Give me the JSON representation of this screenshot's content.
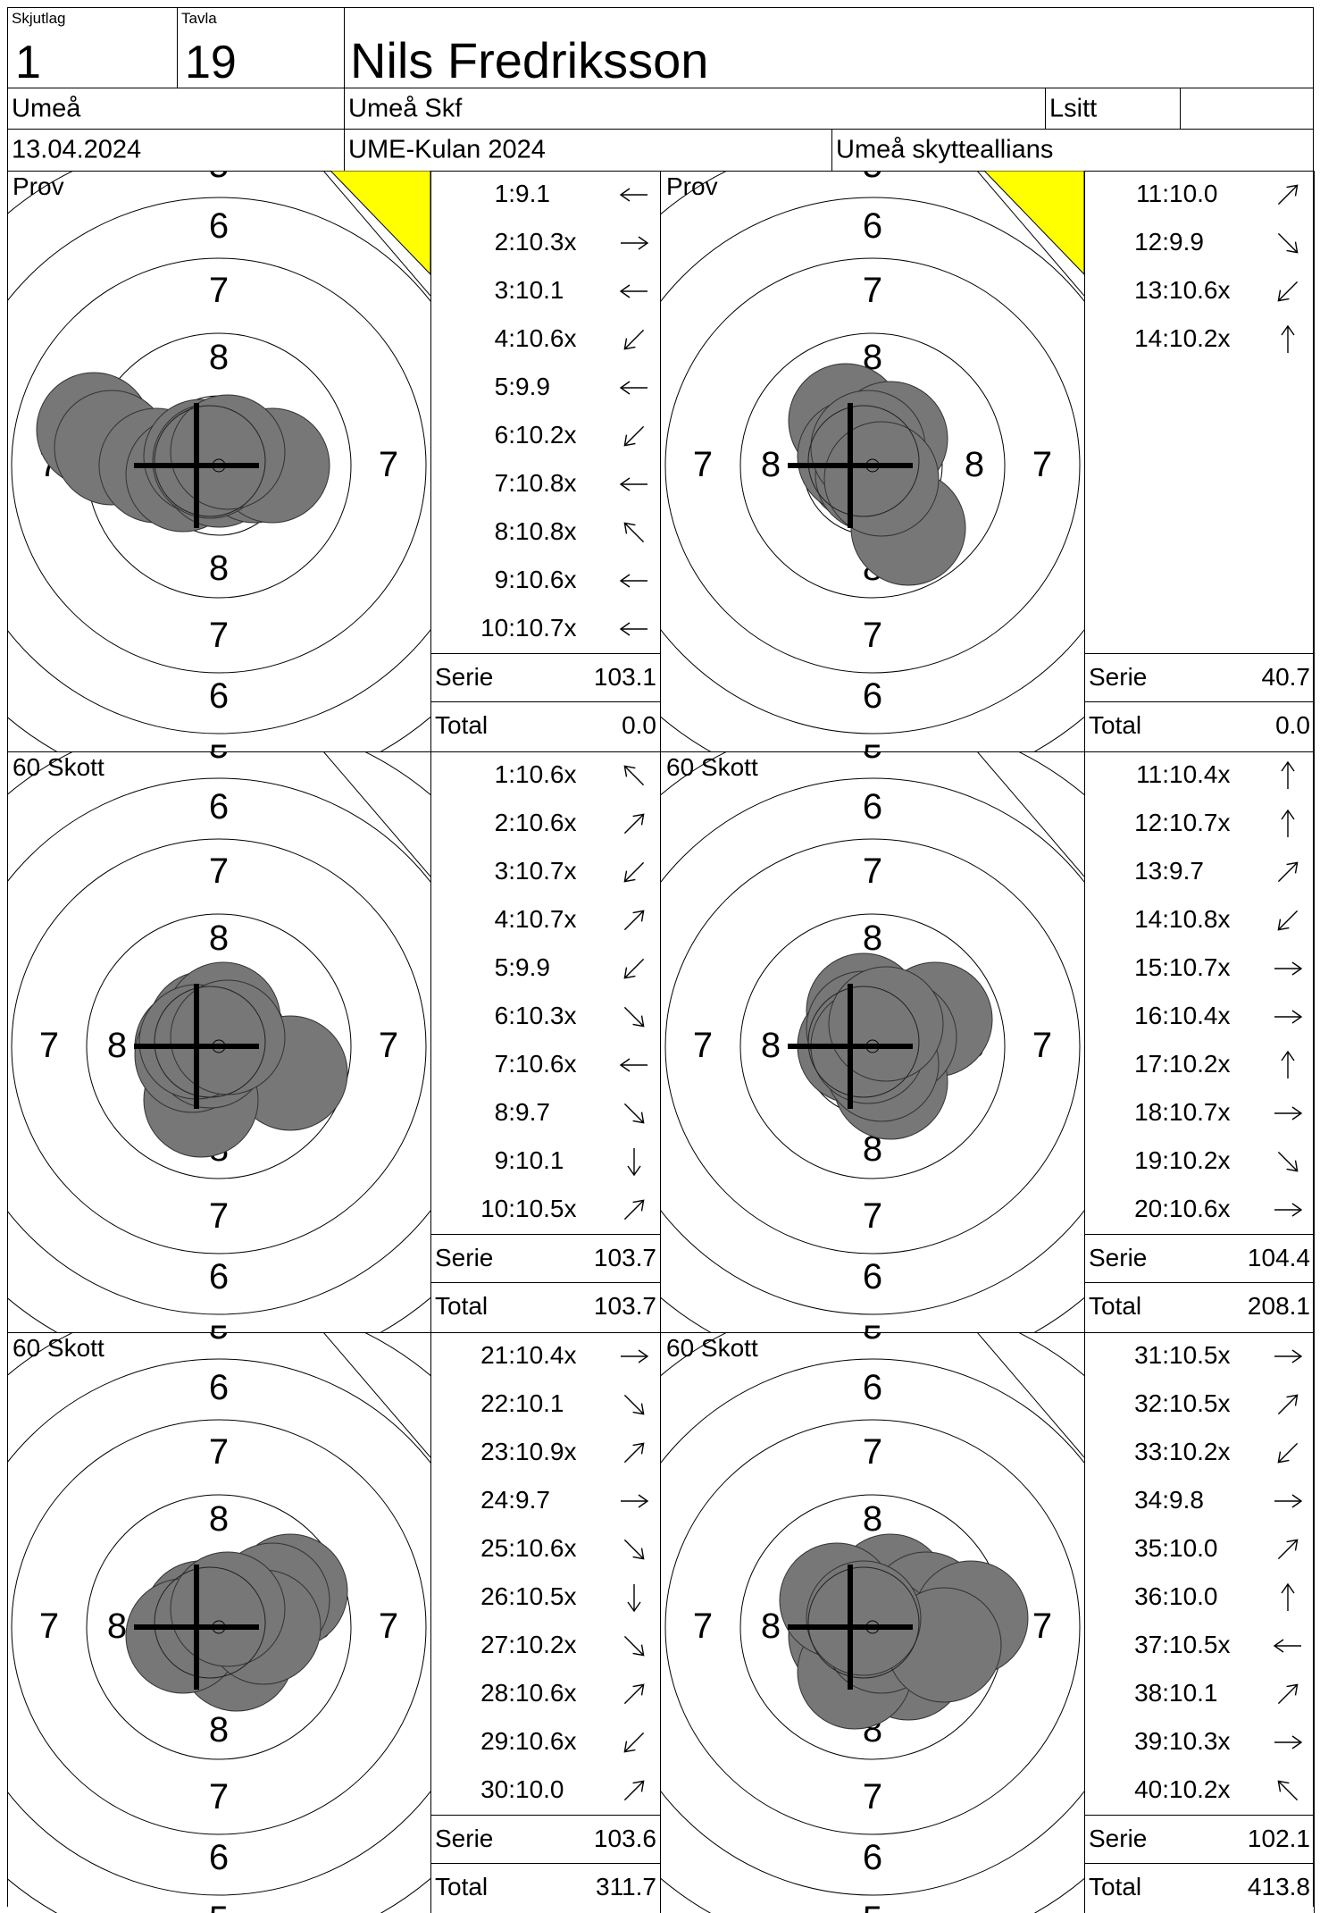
{
  "header": {
    "skjutlag_label": "Skjutlag",
    "skjutlag_value": "1",
    "tavla_label": "Tavla",
    "tavla_value": "19",
    "name": "Nils Fredriksson",
    "place": "Umeå",
    "club": "Umeå Skf",
    "position": "Lsitt",
    "position_extra": "",
    "date": "13.04.2024",
    "competition": "UME-Kulan 2024",
    "organizer": "Umeå skytteallians"
  },
  "colors": {
    "shot_fill": "#777777",
    "flag": "#ffff00",
    "line": "#000000"
  },
  "ring_labels": {
    "r5": "5",
    "r6": "6",
    "r7": "7",
    "r8": "8"
  },
  "sum_labels": {
    "serie": "Serie",
    "total": "Total"
  },
  "panels": [
    {
      "label": "Prov",
      "flag": true,
      "serie": "103.1",
      "total": "0.0",
      "shots": [
        {
          "n": "1:",
          "v": "9.1",
          "dir": "w"
        },
        {
          "n": "2:",
          "v": "10.3x",
          "dir": "e"
        },
        {
          "n": "3:",
          "v": "10.1",
          "dir": "w"
        },
        {
          "n": "4:",
          "v": "10.6x",
          "dir": "sw"
        },
        {
          "n": "5:",
          "v": "9.9",
          "dir": "w"
        },
        {
          "n": "6:",
          "v": "10.2x",
          "dir": "sw"
        },
        {
          "n": "7:",
          "v": "10.8x",
          "dir": "w"
        },
        {
          "n": "8:",
          "v": "10.8x",
          "dir": "nw"
        },
        {
          "n": "9:",
          "v": "10.6x",
          "dir": "w"
        },
        {
          "n": "10:",
          "v": "10.7x",
          "dir": "w"
        }
      ]
    },
    {
      "label": "Prov",
      "flag": true,
      "serie": "40.7",
      "total": "0.0",
      "shots": [
        {
          "n": "11:",
          "v": "10.0",
          "dir": "ne"
        },
        {
          "n": "12:",
          "v": "9.9",
          "dir": "se"
        },
        {
          "n": "13:",
          "v": "10.6x",
          "dir": "sw"
        },
        {
          "n": "14:",
          "v": "10.2x",
          "dir": "n"
        }
      ]
    },
    {
      "label": "60 Skott",
      "flag": false,
      "serie": "103.7",
      "total": "103.7",
      "shots": [
        {
          "n": "1:",
          "v": "10.6x",
          "dir": "nw"
        },
        {
          "n": "2:",
          "v": "10.6x",
          "dir": "ne"
        },
        {
          "n": "3:",
          "v": "10.7x",
          "dir": "sw"
        },
        {
          "n": "4:",
          "v": "10.7x",
          "dir": "ne"
        },
        {
          "n": "5:",
          "v": "9.9",
          "dir": "sw"
        },
        {
          "n": "6:",
          "v": "10.3x",
          "dir": "se"
        },
        {
          "n": "7:",
          "v": "10.6x",
          "dir": "w"
        },
        {
          "n": "8:",
          "v": "9.7",
          "dir": "se"
        },
        {
          "n": "9:",
          "v": "10.1",
          "dir": "s"
        },
        {
          "n": "10:",
          "v": "10.5x",
          "dir": "ne"
        }
      ]
    },
    {
      "label": "60 Skott",
      "flag": false,
      "serie": "104.4",
      "total": "208.1",
      "shots": [
        {
          "n": "11:",
          "v": "10.4x",
          "dir": "n"
        },
        {
          "n": "12:",
          "v": "10.7x",
          "dir": "n"
        },
        {
          "n": "13:",
          "v": "9.7",
          "dir": "ne"
        },
        {
          "n": "14:",
          "v": "10.8x",
          "dir": "sw"
        },
        {
          "n": "15:",
          "v": "10.7x",
          "dir": "e"
        },
        {
          "n": "16:",
          "v": "10.4x",
          "dir": "e"
        },
        {
          "n": "17:",
          "v": "10.2x",
          "dir": "n"
        },
        {
          "n": "18:",
          "v": "10.7x",
          "dir": "e"
        },
        {
          "n": "19:",
          "v": "10.2x",
          "dir": "se"
        },
        {
          "n": "20:",
          "v": "10.6x",
          "dir": "e"
        }
      ]
    },
    {
      "label": "60 Skott",
      "flag": false,
      "serie": "103.6",
      "total": "311.7",
      "shots": [
        {
          "n": "21:",
          "v": "10.4x",
          "dir": "e"
        },
        {
          "n": "22:",
          "v": "10.1",
          "dir": "se"
        },
        {
          "n": "23:",
          "v": "10.9x",
          "dir": "ne"
        },
        {
          "n": "24:",
          "v": "9.7",
          "dir": "e"
        },
        {
          "n": "25:",
          "v": "10.6x",
          "dir": "se"
        },
        {
          "n": "26:",
          "v": "10.5x",
          "dir": "s"
        },
        {
          "n": "27:",
          "v": "10.2x",
          "dir": "se"
        },
        {
          "n": "28:",
          "v": "10.6x",
          "dir": "ne"
        },
        {
          "n": "29:",
          "v": "10.6x",
          "dir": "sw"
        },
        {
          "n": "30:",
          "v": "10.0",
          "dir": "ne"
        }
      ]
    },
    {
      "label": "60 Skott",
      "flag": false,
      "serie": "102.1",
      "total": "413.8",
      "shots": [
        {
          "n": "31:",
          "v": "10.5x",
          "dir": "e"
        },
        {
          "n": "32:",
          "v": "10.5x",
          "dir": "ne"
        },
        {
          "n": "33:",
          "v": "10.2x",
          "dir": "sw"
        },
        {
          "n": "34:",
          "v": "9.8",
          "dir": "e"
        },
        {
          "n": "35:",
          "v": "10.0",
          "dir": "ne"
        },
        {
          "n": "36:",
          "v": "10.0",
          "dir": "n"
        },
        {
          "n": "37:",
          "v": "10.5x",
          "dir": "w"
        },
        {
          "n": "38:",
          "v": "10.1",
          "dir": "ne"
        },
        {
          "n": "39:",
          "v": "10.3x",
          "dir": "e"
        },
        {
          "n": "40:",
          "v": "10.2x",
          "dir": "nw"
        }
      ]
    }
  ]
}
